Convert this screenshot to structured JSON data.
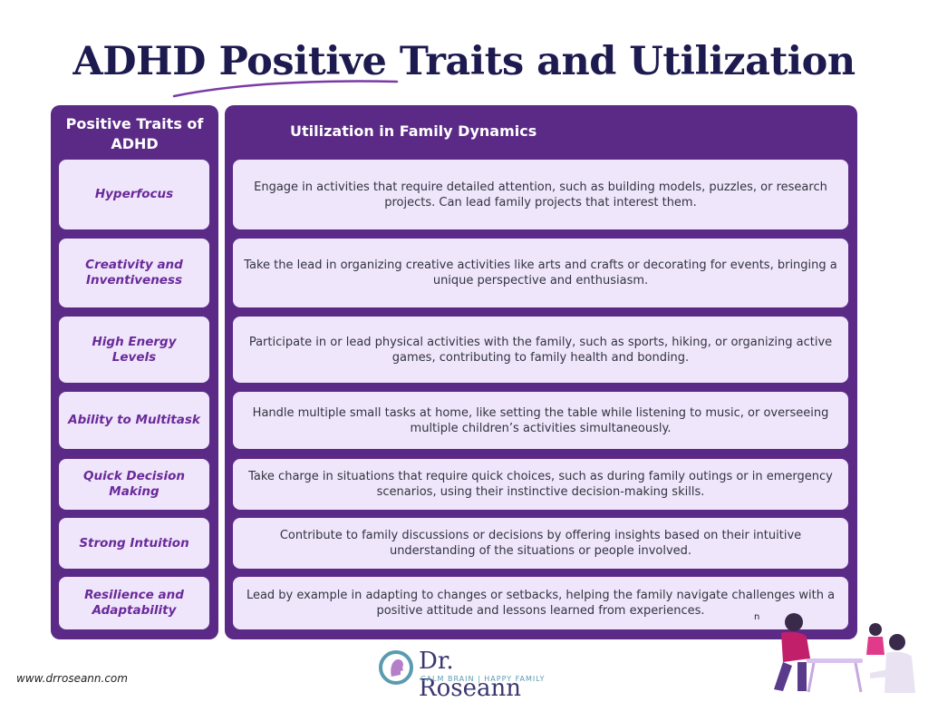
{
  "title": {
    "prefix": "ADHD ",
    "highlight": "Positive",
    "suffix": " Traits and Utilization"
  },
  "table": {
    "col1_header": "Positive Traits of ADHD",
    "col2_header": "Utilization in Family Dynamics",
    "rows": [
      {
        "trait": "Hyperfocus",
        "utilization": "Engage in activities that require detailed attention, such as building models, puzzles, or research projects. Can lead family projects that interest them."
      },
      {
        "trait": "Creativity and Inventiveness",
        "utilization": "Take the lead in organizing creative activities like arts and crafts or decorating for events, bringing a unique perspective and enthusiasm."
      },
      {
        "trait": "High Energy Levels",
        "utilization": "Participate in or lead physical activities with the family, such as sports, hiking, or organizing active games, contributing to family health and bonding."
      },
      {
        "trait": "Ability to Multitask",
        "utilization": "Handle multiple small tasks at home, like setting the table while listening to music, or overseeing multiple children’s activities simultaneously."
      },
      {
        "trait": "Quick Decision Making",
        "utilization": "Take charge in situations that require quick choices, such as during family outings or in emergency scenarios, using their instinctive decision-making skills."
      },
      {
        "trait": "Strong Intuition",
        "utilization": "Contribute to family discussions or decisions by offering insights based on their intuitive understanding of the situations or people involved."
      },
      {
        "trait": "Resilience and Adaptability",
        "utilization": "Lead by example in adapting to changes or setbacks, helping the family navigate challenges with a positive attitude and lessons learned from experiences."
      }
    ],
    "stray_char": "n"
  },
  "footer": {
    "website": "www.drroseann.com",
    "logo_name": "Dr. Roseann",
    "logo_tagline": "CALM BRAIN | HAPPY FAMILY",
    "logo_icon": "head-profile-icon",
    "illustration": "family-activity-illustration"
  },
  "colors": {
    "title": "#1d1a4f",
    "panel": "#5b2a86",
    "cell": "#efe6fb",
    "trait_text": "#6a2a9a",
    "underline": "#7a3aa8"
  }
}
